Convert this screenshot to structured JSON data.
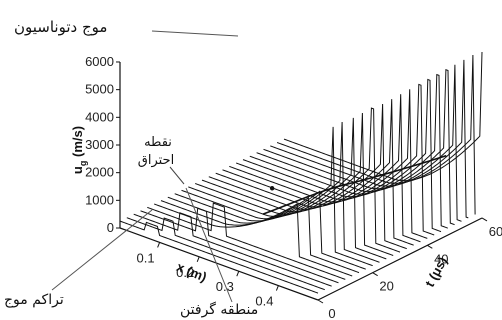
{
  "chart_data": {
    "type": "line",
    "style": "3d-waterfall",
    "annotations": {
      "detonation_wave": "موج دتوناسیون",
      "ignition_point_line1": "نقطه",
      "ignition_point_line2": "احتراق",
      "wave_accumulation": "تراکم موج",
      "capture_zone": "منطقه گرفتن"
    },
    "y_axis": {
      "label": "u",
      "label_sub": "g",
      "unit": "(m/s)",
      "ticks": [
        "0",
        "1000",
        "2000",
        "3000",
        "4000",
        "5000",
        "6000"
      ],
      "range": [
        0,
        6000
      ]
    },
    "x_axis": {
      "label": "x (m)",
      "ticks": [
        "0.1",
        "0.2",
        "0.3",
        "0.4"
      ],
      "range": [
        0,
        0.5
      ]
    },
    "t_axis": {
      "label": "t (μs)",
      "ticks": [
        "0",
        "20",
        "40",
        "60"
      ],
      "range": [
        0,
        60
      ]
    },
    "series_summary": {
      "profiles": 25,
      "t_step_us": 2.5,
      "peak_velocity_ms": 6000,
      "baseline_velocity_ms": 250,
      "ignition_x_m": 0.26,
      "ignition_t_us": 18,
      "ignition_velocity_ms": 1900,
      "front_x_start_m": 0.18,
      "front_x_end_m": 0.5
    }
  }
}
